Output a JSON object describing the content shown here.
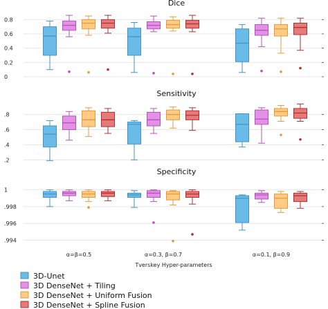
{
  "chart_data": {
    "type": "box",
    "groups": [
      "α=β=0.5",
      "α=0.3, β=0.7",
      "α=0.1, β=0.9"
    ],
    "xlabel": "Tverskey Hyper-parameters",
    "legend_position": "bottom-left",
    "grid": true,
    "series": [
      {
        "name": "3D-Unet",
        "color": "#6bbbe8",
        "stroke": "#3f95c9"
      },
      {
        "name": "3D DenseNet + Tiling",
        "color": "#e391e6",
        "stroke": "#b553bb"
      },
      {
        "name": "3D DenseNet + Uniform Fusion",
        "color": "#ffcb85",
        "stroke": "#e79a39"
      },
      {
        "name": "3D DenseNet + Spline Fusion",
        "color": "#e47a7a",
        "stroke": "#b52f30"
      }
    ],
    "panels": [
      {
        "title": "Dice",
        "ylim": [
          0,
          0.9
        ],
        "ticks": [
          0,
          0.2,
          0.4,
          0.6,
          0.8
        ],
        "tick_labels": [
          "0",
          "0.2",
          "0.4",
          "0.6",
          "0.8"
        ],
        "boxes": [
          [
            {
              "whislo": 0.1,
              "q1": 0.3,
              "med": 0.57,
              "q3": 0.7,
              "whishi": 0.78,
              "fliers": []
            },
            {
              "whislo": 0.56,
              "q1": 0.65,
              "med": 0.72,
              "q3": 0.78,
              "whishi": 0.86,
              "fliers": [
                0.07
              ]
            },
            {
              "whislo": 0.58,
              "q1": 0.67,
              "med": 0.75,
              "q3": 0.8,
              "whishi": 0.85,
              "fliers": [
                0.06
              ]
            },
            {
              "whislo": 0.61,
              "q1": 0.68,
              "med": 0.75,
              "q3": 0.8,
              "whishi": 0.86,
              "fliers": [
                0.1
              ]
            }
          ],
          [
            {
              "whislo": 0.06,
              "q1": 0.3,
              "med": 0.56,
              "q3": 0.68,
              "whishi": 0.76,
              "fliers": []
            },
            {
              "whislo": 0.63,
              "q1": 0.67,
              "med": 0.72,
              "q3": 0.77,
              "whishi": 0.85,
              "fliers": [
                0.05
              ]
            },
            {
              "whislo": 0.64,
              "q1": 0.68,
              "med": 0.73,
              "q3": 0.79,
              "whishi": 0.84,
              "fliers": [
                0.04
              ]
            },
            {
              "whislo": 0.63,
              "q1": 0.68,
              "med": 0.74,
              "q3": 0.79,
              "whishi": 0.86,
              "fliers": [
                0.04
              ]
            }
          ],
          [
            {
              "whislo": 0.06,
              "q1": 0.21,
              "med": 0.47,
              "q3": 0.67,
              "whishi": 0.73,
              "fliers": []
            },
            {
              "whislo": 0.42,
              "q1": 0.58,
              "med": 0.65,
              "q3": 0.73,
              "whishi": 0.82,
              "fliers": [
                0.08
              ]
            },
            {
              "whislo": 0.33,
              "q1": 0.57,
              "med": 0.67,
              "q3": 0.73,
              "whishi": 0.82,
              "fliers": [
                0.07
              ]
            },
            {
              "whislo": 0.37,
              "q1": 0.59,
              "med": 0.69,
              "q3": 0.75,
              "whishi": 0.82,
              "fliers": [
                0.12
              ]
            }
          ]
        ]
      },
      {
        "title": "Sensitivity",
        "ylim": [
          0.12,
          0.98
        ],
        "ticks": [
          0.2,
          0.4,
          0.6,
          0.8
        ],
        "tick_labels": [
          ".2",
          ".4",
          ".6",
          ".8"
        ],
        "boxes": [
          [
            {
              "whislo": 0.19,
              "q1": 0.37,
              "med": 0.54,
              "q3": 0.65,
              "whishi": 0.72,
              "fliers": []
            },
            {
              "whislo": 0.46,
              "q1": 0.6,
              "med": 0.69,
              "q3": 0.78,
              "whishi": 0.84,
              "fliers": []
            },
            {
              "whislo": 0.51,
              "q1": 0.64,
              "med": 0.73,
              "q3": 0.85,
              "whishi": 0.89,
              "fliers": []
            },
            {
              "whislo": 0.55,
              "q1": 0.64,
              "med": 0.73,
              "q3": 0.83,
              "whishi": 0.88,
              "fliers": []
            }
          ],
          [
            {
              "whislo": 0.2,
              "q1": 0.41,
              "med": 0.67,
              "q3": 0.7,
              "whishi": 0.72,
              "fliers": []
            },
            {
              "whislo": 0.55,
              "q1": 0.65,
              "med": 0.73,
              "q3": 0.83,
              "whishi": 0.88,
              "fliers": []
            },
            {
              "whislo": 0.62,
              "q1": 0.73,
              "med": 0.8,
              "q3": 0.86,
              "whishi": 0.9,
              "fliers": []
            },
            {
              "whislo": 0.59,
              "q1": 0.73,
              "med": 0.79,
              "q3": 0.85,
              "whishi": 0.89,
              "fliers": []
            }
          ],
          [
            {
              "whislo": 0.37,
              "q1": 0.44,
              "med": 0.67,
              "q3": 0.81,
              "whishi": 0.81,
              "fliers": []
            },
            {
              "whislo": 0.42,
              "q1": 0.67,
              "med": 0.74,
              "q3": 0.86,
              "whishi": 0.89,
              "fliers": []
            },
            {
              "whislo": 0.71,
              "q1": 0.78,
              "med": 0.84,
              "q3": 0.88,
              "whishi": 0.92,
              "fliers": [
                0.53
              ]
            },
            {
              "whislo": 0.71,
              "q1": 0.75,
              "med": 0.82,
              "q3": 0.88,
              "whishi": 0.94,
              "fliers": [
                0.47
              ]
            }
          ]
        ]
      },
      {
        "title": "Specificity",
        "ylim": [
          0.9933,
          1.0012
        ],
        "ticks": [
          0.994,
          0.996,
          0.998,
          1.0
        ],
        "tick_labels": [
          ".994",
          ".996",
          ".998",
          "1"
        ],
        "boxes": [
          [
            {
              "whislo": 0.998,
              "q1": 0.9991,
              "med": 0.9995,
              "q3": 0.9998,
              "whishi": 1.0,
              "fliers": []
            },
            {
              "whislo": 0.9987,
              "q1": 0.9993,
              "med": 0.9996,
              "q3": 0.9998,
              "whishi": 1.0,
              "fliers": []
            },
            {
              "whislo": 0.9986,
              "q1": 0.9991,
              "med": 0.9995,
              "q3": 0.9998,
              "whishi": 1.0,
              "fliers": [
                0.9979
              ]
            },
            {
              "whislo": 0.9987,
              "q1": 0.9992,
              "med": 0.9996,
              "q3": 0.9998,
              "whishi": 1.0,
              "fliers": []
            }
          ],
          [
            {
              "whislo": 0.9979,
              "q1": 0.9991,
              "med": 0.9994,
              "q3": 0.9996,
              "whishi": 0.9999,
              "fliers": []
            },
            {
              "whislo": 0.9986,
              "q1": 0.9991,
              "med": 0.9996,
              "q3": 0.9999,
              "whishi": 1.0,
              "fliers": [
                0.9961
              ]
            },
            {
              "whislo": 0.9982,
              "q1": 0.9988,
              "med": 0.9995,
              "q3": 0.9998,
              "whishi": 0.9999,
              "fliers": [
                0.9939
              ]
            },
            {
              "whislo": 0.9983,
              "q1": 0.9991,
              "med": 0.9995,
              "q3": 0.9998,
              "whishi": 1.0,
              "fliers": [
                0.9947
              ]
            }
          ],
          [
            {
              "whislo": 0.9952,
              "q1": 0.9961,
              "med": 0.999,
              "q3": 0.9993,
              "whishi": 0.9994,
              "fliers": []
            },
            {
              "whislo": 0.9985,
              "q1": 0.9989,
              "med": 0.9994,
              "q3": 0.9996,
              "whishi": 0.9999,
              "fliers": []
            },
            {
              "whislo": 0.9973,
              "q1": 0.9978,
              "med": 0.999,
              "q3": 0.9995,
              "whishi": 0.9998,
              "fliers": []
            },
            {
              "whislo": 0.9978,
              "q1": 0.9986,
              "med": 0.9993,
              "q3": 0.9996,
              "whishi": 0.9998,
              "fliers": []
            }
          ]
        ]
      }
    ]
  }
}
